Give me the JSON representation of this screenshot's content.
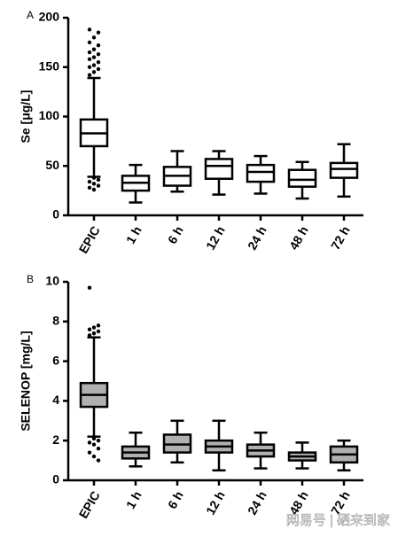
{
  "chart_data": [
    {
      "type": "box",
      "label": "A",
      "y_label": "Se [μg/L]",
      "color": "#ffffff",
      "categories": [
        "EPIC",
        "1 h",
        "6 h",
        "12 h",
        "24 h",
        "48 h",
        "72 h"
      ],
      "ylim": [
        0,
        200
      ],
      "yticks": [
        0,
        50,
        100,
        150,
        200
      ],
      "boxes": [
        {
          "min": 39,
          "q1": 70,
          "median": 83,
          "q3": 97,
          "max": 139,
          "outliers": [
            142,
            145,
            148,
            150,
            152,
            155,
            158,
            160,
            163,
            165,
            168,
            172,
            175,
            180,
            185,
            188,
            38,
            36,
            34,
            32,
            30,
            28,
            26
          ]
        },
        {
          "min": 13,
          "q1": 25,
          "median": 33,
          "q3": 40,
          "max": 51,
          "outliers": []
        },
        {
          "min": 24,
          "q1": 30,
          "median": 40,
          "q3": 49,
          "max": 65,
          "outliers": []
        },
        {
          "min": 21,
          "q1": 37,
          "median": 50,
          "q3": 57,
          "max": 65,
          "outliers": []
        },
        {
          "min": 22,
          "q1": 34,
          "median": 44,
          "q3": 51,
          "max": 60,
          "outliers": []
        },
        {
          "min": 17,
          "q1": 29,
          "median": 36,
          "q3": 46,
          "max": 54,
          "outliers": []
        },
        {
          "min": 19,
          "q1": 38,
          "median": 47,
          "q3": 53,
          "max": 72,
          "outliers": []
        }
      ]
    },
    {
      "type": "box",
      "label": "B",
      "y_label": "SELENOP [mg/L]",
      "color": "#b0b0b0",
      "categories": [
        "EPIC",
        "1 h",
        "6 h",
        "12 h",
        "24 h",
        "48 h",
        "72 h"
      ],
      "ylim": [
        0,
        10
      ],
      "yticks": [
        0,
        2,
        4,
        6,
        8,
        10
      ],
      "boxes": [
        {
          "min": 2.2,
          "q1": 3.7,
          "median": 4.3,
          "q3": 4.9,
          "max": 7.2,
          "outliers": [
            7.3,
            7.4,
            7.5,
            7.6,
            7.7,
            7.8,
            9.7,
            2.1,
            2.0,
            1.9,
            1.8,
            1.6,
            1.4,
            1.2,
            1.0
          ]
        },
        {
          "min": 0.7,
          "q1": 1.1,
          "median": 1.4,
          "q3": 1.7,
          "max": 2.4,
          "outliers": []
        },
        {
          "min": 0.9,
          "q1": 1.4,
          "median": 1.8,
          "q3": 2.3,
          "max": 3.0,
          "outliers": []
        },
        {
          "min": 0.5,
          "q1": 1.4,
          "median": 1.7,
          "q3": 2.0,
          "max": 3.0,
          "outliers": []
        },
        {
          "min": 0.6,
          "q1": 1.2,
          "median": 1.5,
          "q3": 1.8,
          "max": 2.4,
          "outliers": []
        },
        {
          "min": 0.6,
          "q1": 1.0,
          "median": 1.2,
          "q3": 1.4,
          "max": 1.9,
          "outliers": []
        },
        {
          "min": 0.5,
          "q1": 0.9,
          "median": 1.3,
          "q3": 1.7,
          "max": 2.0,
          "outliers": []
        }
      ]
    }
  ],
  "watermark": "网易号 | 硒来到家"
}
